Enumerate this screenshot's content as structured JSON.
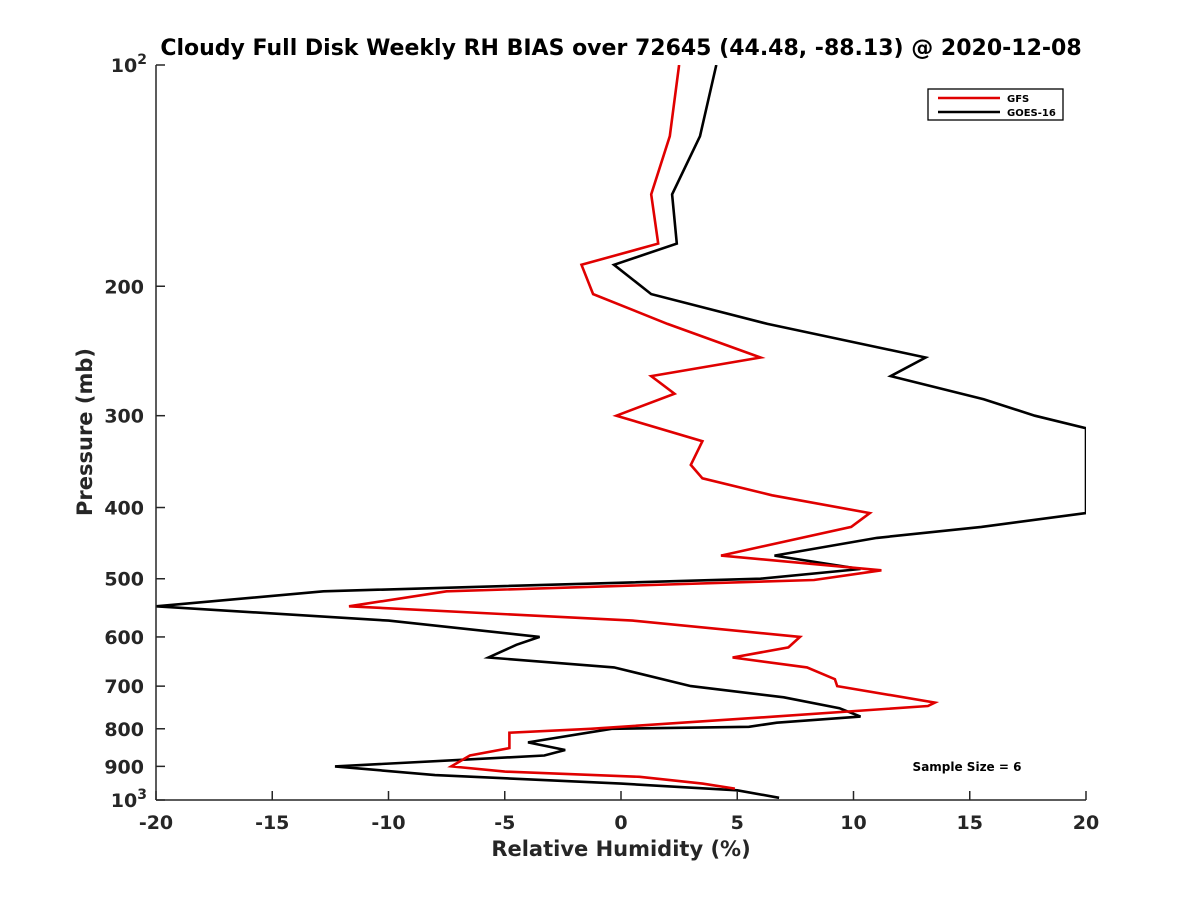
{
  "chart_data": {
    "type": "line",
    "title": "Cloudy Full Disk Weekly RH BIAS over 72645 (44.48, -88.13) @ 2020-12-08",
    "xlabel": "Relative Humidity (%)",
    "ylabel": "Pressure (mb)",
    "xlim": [
      -20,
      20
    ],
    "ylim": [
      1000,
      100
    ],
    "yscale": "log",
    "y_reversed": true,
    "grid": false,
    "legend_position": "top-right",
    "x_ticks": [
      "-20",
      "-15",
      "-10",
      "-5",
      "0",
      "5",
      "10",
      "15",
      "20"
    ],
    "y_ticks": [
      {
        "value": 100,
        "base": "10",
        "exp": "2"
      },
      {
        "value": 200,
        "label": "200"
      },
      {
        "value": 300,
        "label": "300"
      },
      {
        "value": 400,
        "label": "400"
      },
      {
        "value": 500,
        "label": "500"
      },
      {
        "value": 600,
        "label": "600"
      },
      {
        "value": 700,
        "label": "700"
      },
      {
        "value": 800,
        "label": "800"
      },
      {
        "value": 900,
        "label": "900"
      },
      {
        "value": 1000,
        "base": "10",
        "exp": "3"
      }
    ],
    "series": [
      {
        "name": "GFS",
        "color": "#e00000",
        "points": [
          [
            2.5,
            100
          ],
          [
            2.1,
            125
          ],
          [
            1.3,
            150
          ],
          [
            1.6,
            175
          ],
          [
            -1.7,
            187
          ],
          [
            -1.2,
            205
          ],
          [
            2.0,
            225
          ],
          [
            6.0,
            250
          ],
          [
            1.3,
            265
          ],
          [
            2.3,
            280
          ],
          [
            -0.2,
            300
          ],
          [
            3.5,
            325
          ],
          [
            3.0,
            350
          ],
          [
            3.5,
            365
          ],
          [
            6.5,
            385
          ],
          [
            10.7,
            407
          ],
          [
            9.9,
            425
          ],
          [
            4.3,
            465
          ],
          [
            11.2,
            487
          ],
          [
            8.3,
            502
          ],
          [
            -7.5,
            520
          ],
          [
            -11.7,
            545
          ],
          [
            0.5,
            570
          ],
          [
            7.7,
            600
          ],
          [
            7.2,
            620
          ],
          [
            4.8,
            640
          ],
          [
            8.0,
            660
          ],
          [
            9.2,
            685
          ],
          [
            9.3,
            700
          ],
          [
            13.5,
            737
          ],
          [
            13.2,
            745
          ],
          [
            6.6,
            770
          ],
          [
            -1.3,
            800
          ],
          [
            -4.8,
            810
          ],
          [
            -4.8,
            850
          ],
          [
            -6.5,
            870
          ],
          [
            -7.3,
            900
          ],
          [
            -5.0,
            915
          ],
          [
            0.8,
            930
          ],
          [
            3.5,
            950
          ],
          [
            4.9,
            965
          ]
        ]
      },
      {
        "name": "GOES-16",
        "color": "#000000",
        "points": [
          [
            4.1,
            100
          ],
          [
            3.4,
            125
          ],
          [
            2.2,
            150
          ],
          [
            2.4,
            175
          ],
          [
            -0.3,
            187
          ],
          [
            1.3,
            205
          ],
          [
            6.3,
            225
          ],
          [
            13.1,
            250
          ],
          [
            11.6,
            265
          ],
          [
            15.6,
            285
          ],
          [
            17.8,
            300
          ],
          [
            20.0,
            312
          ],
          [
            20.0,
            407
          ],
          [
            15.5,
            425
          ],
          [
            11.0,
            440
          ],
          [
            6.6,
            465
          ],
          [
            10.3,
            485
          ],
          [
            6.0,
            500
          ],
          [
            -12.8,
            520
          ],
          [
            -20.0,
            545
          ],
          [
            -10.0,
            570
          ],
          [
            -3.5,
            600
          ],
          [
            -4.5,
            615
          ],
          [
            -5.7,
            640
          ],
          [
            -0.3,
            660
          ],
          [
            3.0,
            700
          ],
          [
            7.0,
            725
          ],
          [
            9.4,
            750
          ],
          [
            10.3,
            770
          ],
          [
            6.7,
            785
          ],
          [
            5.5,
            795
          ],
          [
            -0.4,
            800
          ],
          [
            -4.0,
            835
          ],
          [
            -2.4,
            855
          ],
          [
            -3.3,
            870
          ],
          [
            -12.3,
            900
          ],
          [
            -8.0,
            925
          ],
          [
            0.0,
            950
          ],
          [
            5.0,
            970
          ],
          [
            6.8,
            993
          ]
        ]
      }
    ],
    "annotation": "Sample Size = 6"
  }
}
